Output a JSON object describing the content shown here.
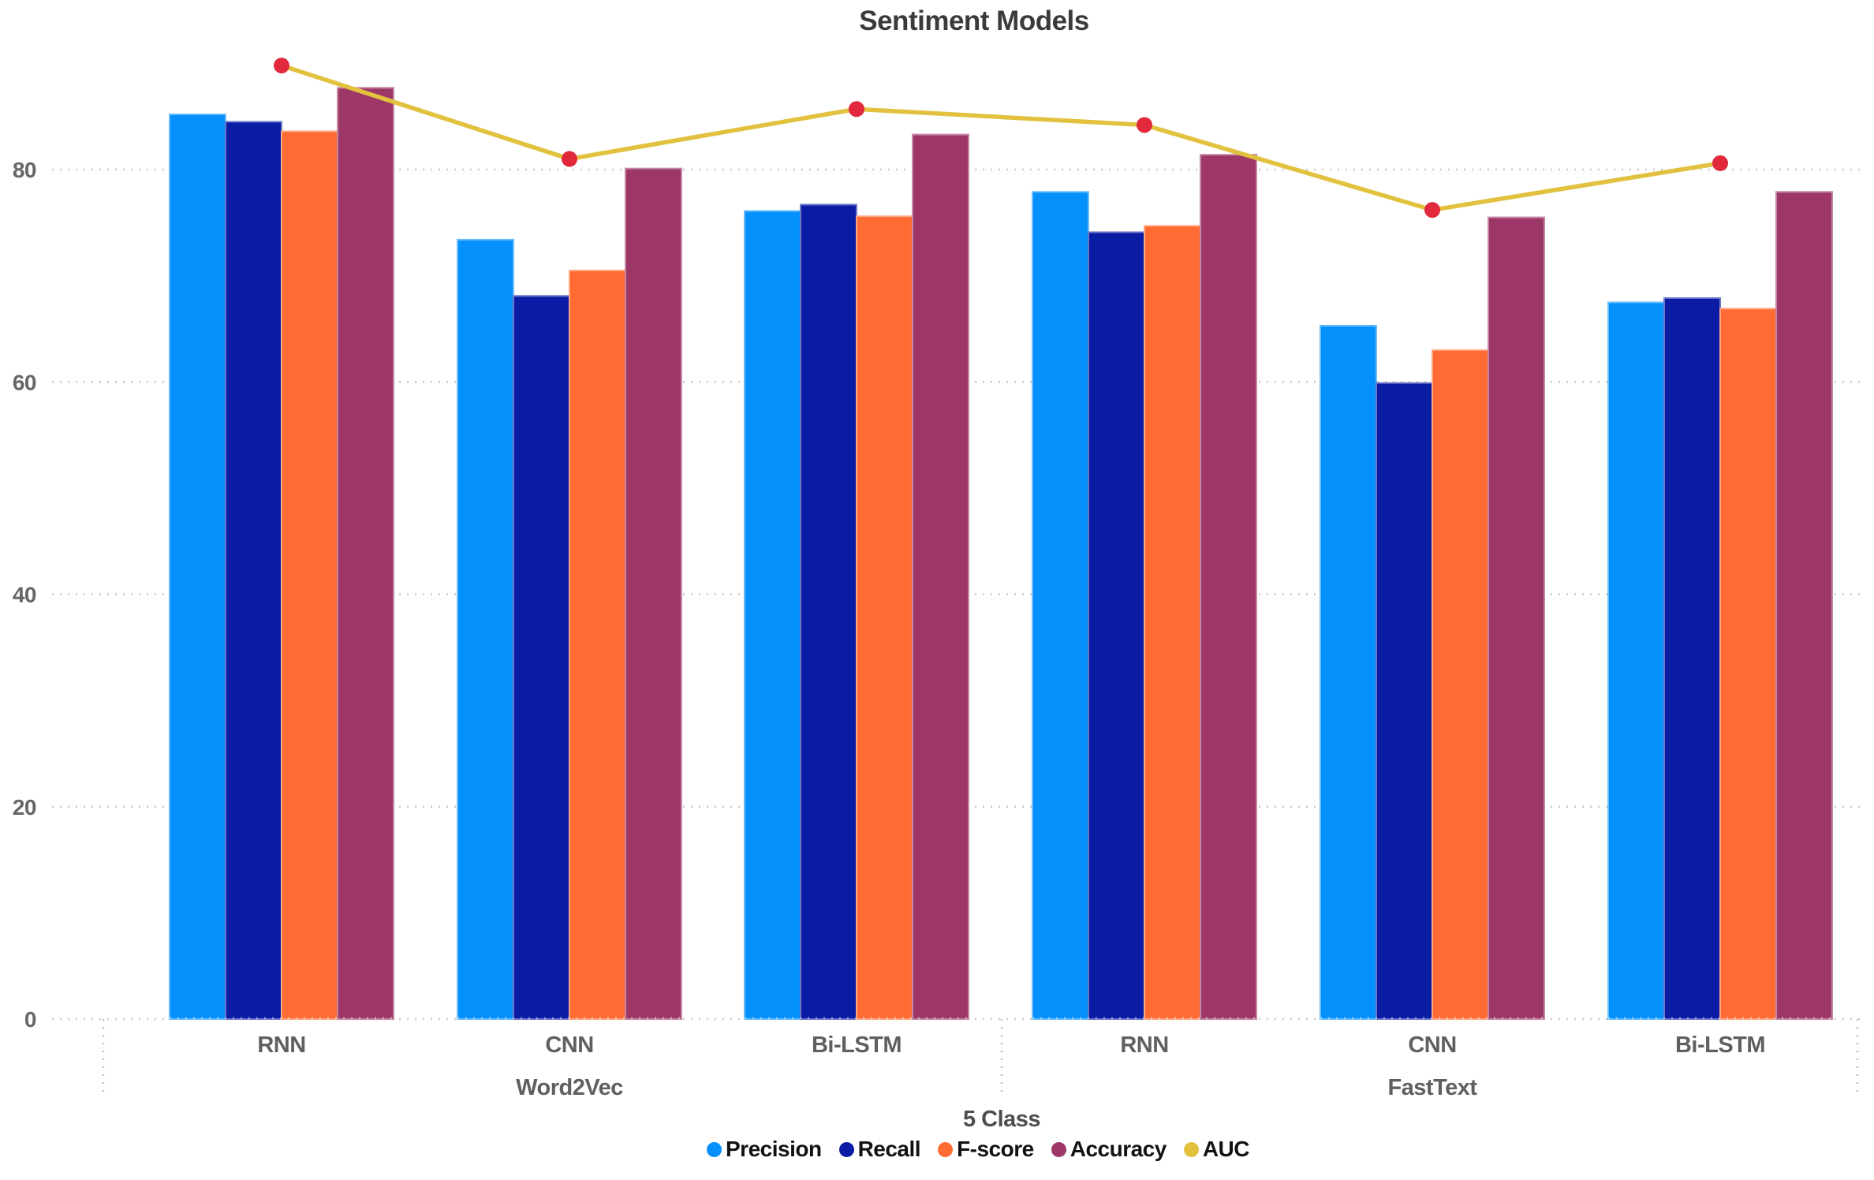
{
  "chart_data": {
    "type": "bar",
    "title": "Sentiment Models",
    "x_axis": {
      "title": "5 Class",
      "groups": [
        {
          "label": "Word2Vec",
          "ticks": [
            "RNN",
            "CNN",
            "Bi-LSTM"
          ]
        },
        {
          "label": "FastText",
          "ticks": [
            "RNN",
            "CNN",
            "Bi-LSTM"
          ]
        }
      ]
    },
    "y_axis": {
      "ticks": [
        0,
        20,
        40,
        60,
        80
      ],
      "range": [
        0,
        93
      ],
      "grid": "dotted"
    },
    "series": [
      {
        "name": "Precision",
        "type": "bar",
        "color": "#0591fb",
        "values": [
          85.2,
          73.4,
          76.1,
          77.9,
          65.3,
          67.5
        ]
      },
      {
        "name": "Recall",
        "type": "bar",
        "color": "#0a1ca3",
        "values": [
          84.5,
          68.1,
          76.7,
          74.1,
          59.9,
          67.9
        ]
      },
      {
        "name": "F-score",
        "type": "bar",
        "color": "#ff6b32",
        "values": [
          83.6,
          70.5,
          75.6,
          74.7,
          63.0,
          66.9
        ]
      },
      {
        "name": "Accuracy",
        "type": "bar",
        "color": "#9d3767",
        "values": [
          87.7,
          80.1,
          83.3,
          81.4,
          75.5,
          77.9
        ]
      },
      {
        "name": "AUC",
        "type": "line",
        "color": "#e2c13f",
        "marker_color": "#e2293b",
        "values": [
          89.8,
          81.0,
          85.7,
          84.2,
          76.2,
          80.6
        ]
      }
    ],
    "legend_position": "bottom"
  }
}
